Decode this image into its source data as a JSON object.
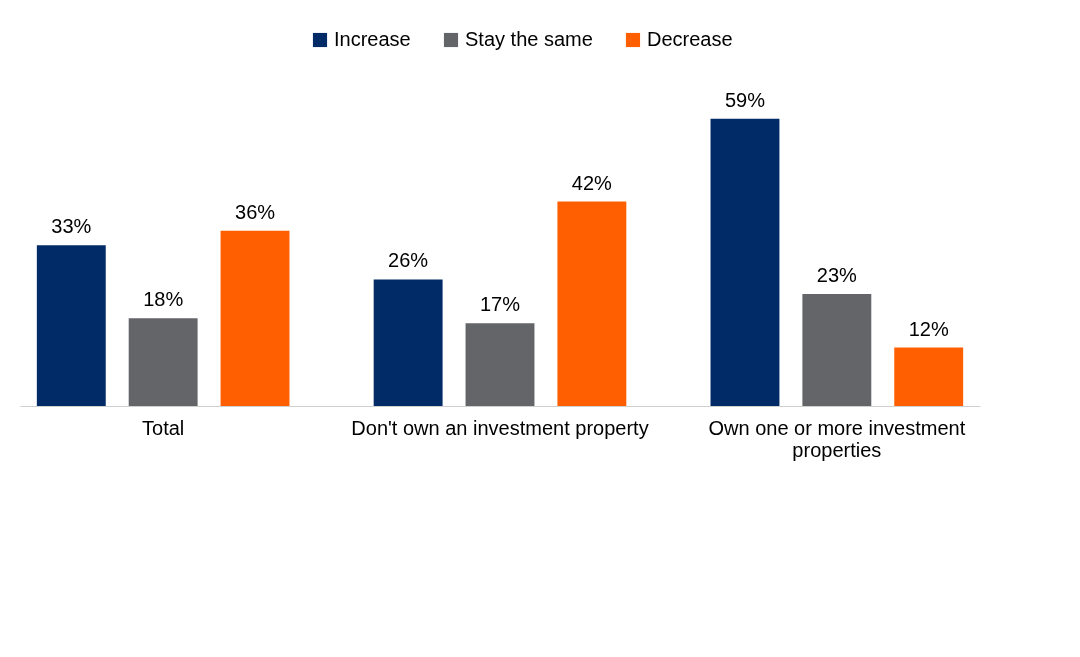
{
  "chart_data": {
    "type": "bar",
    "categories": [
      "Total",
      "Don't own an investment property",
      "Own one or more investment properties"
    ],
    "series": [
      {
        "name": "Increase",
        "color": "#002b66",
        "values": [
          33,
          26,
          59
        ],
        "value_labels": [
          "33%",
          "26%",
          "59%"
        ]
      },
      {
        "name": "Stay the same",
        "color": "#636569",
        "values": [
          18,
          17,
          23
        ],
        "value_labels": [
          "18%",
          "17%",
          "23%"
        ]
      },
      {
        "name": "Decrease",
        "color": "#ff5f00",
        "values": [
          36,
          42,
          12
        ],
        "value_labels": [
          "36%",
          "42%",
          "12%"
        ]
      }
    ],
    "legend": "top"
  }
}
